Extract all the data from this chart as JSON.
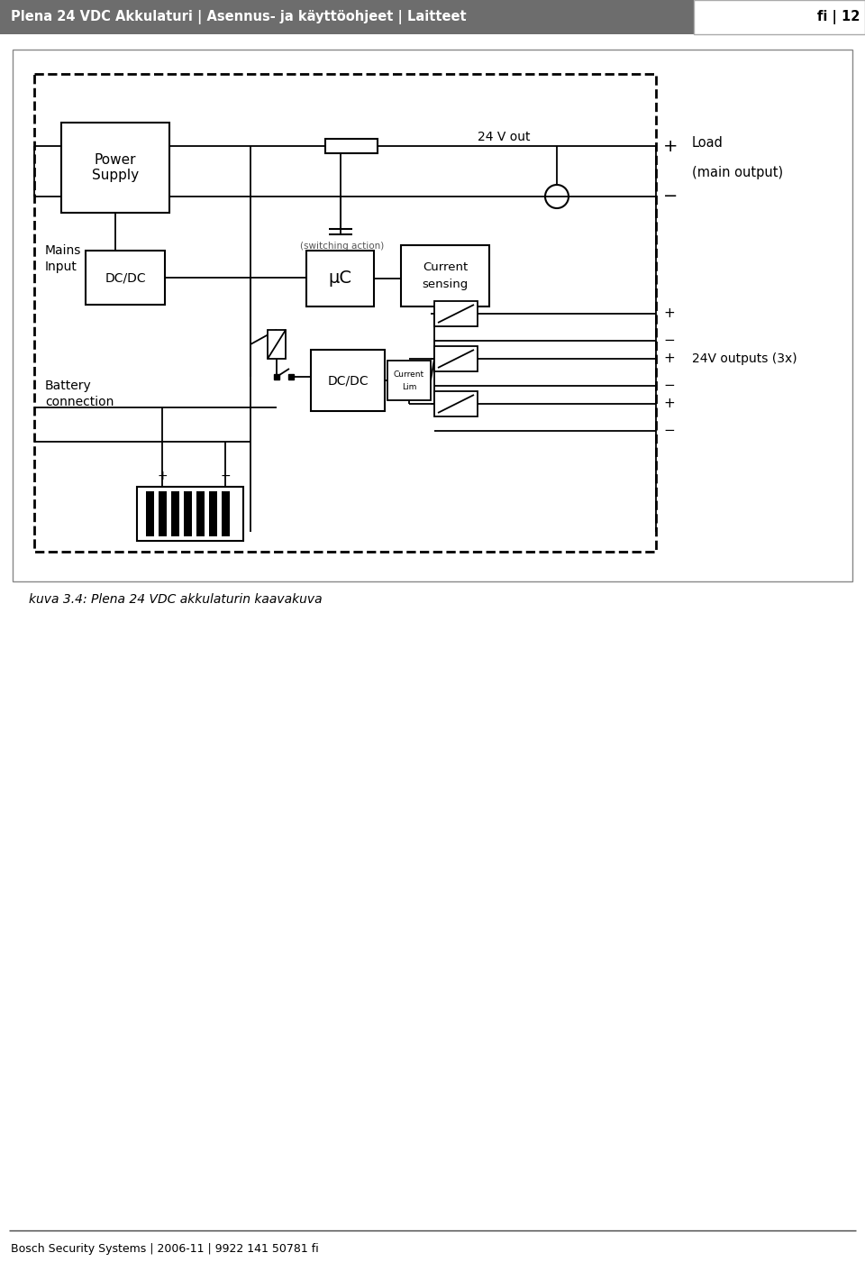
{
  "header_bg": "#6d6d6d",
  "header_text": "Plena 24 VDC Akkulaturi | Asennus- ja käyttöohjeet | Laitteet",
  "header_right": "fi | 12",
  "footer_text": "Bosch Security Systems | 2006-11 | 9922 141 50781 fi",
  "caption": "kuva 3.4: Plena 24 VDC akkulaturin kaavakuva"
}
